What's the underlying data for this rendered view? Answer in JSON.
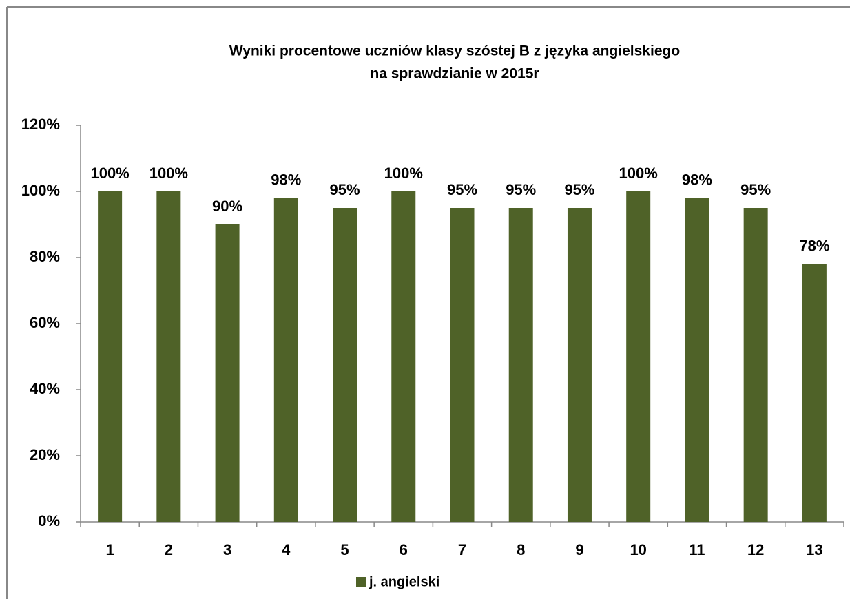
{
  "chart_data": {
    "type": "bar",
    "title": [
      "Wyniki procentowe uczniów klasy szóstej B z języka angielskiego",
      "na sprawdzianie w 2015r"
    ],
    "categories": [
      "1",
      "2",
      "3",
      "4",
      "5",
      "6",
      "7",
      "8",
      "9",
      "10",
      "11",
      "12",
      "13"
    ],
    "series": [
      {
        "name": "j. angielski",
        "color": "#4f6228",
        "values": [
          100,
          100,
          90,
          98,
          95,
          100,
          95,
          95,
          95,
          100,
          98,
          95,
          78
        ],
        "value_labels": [
          "100%",
          "100%",
          "90%",
          "98%",
          "95%",
          "100%",
          "95%",
          "95%",
          "95%",
          "100%",
          "98%",
          "95%",
          "78%"
        ]
      }
    ],
    "ylim": [
      0,
      120
    ],
    "yticks": [
      {
        "value": 0,
        "label": "0%"
      },
      {
        "value": 20,
        "label": "20%"
      },
      {
        "value": 40,
        "label": "40%"
      },
      {
        "value": 60,
        "label": "60%"
      },
      {
        "value": 80,
        "label": "80%"
      },
      {
        "value": 100,
        "label": "100%"
      },
      {
        "value": 120,
        "label": "120%"
      }
    ],
    "grid": false,
    "legend": "bottom"
  }
}
